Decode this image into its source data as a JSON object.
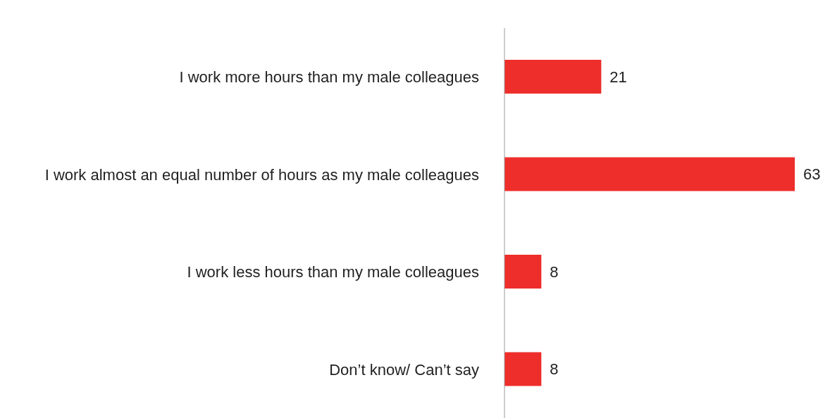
{
  "chart_data": {
    "type": "bar",
    "orientation": "horizontal",
    "categories": [
      "I work more hours than my male colleagues",
      "I work almost an equal number of hours as my male colleagues",
      "I work less hours than my male colleagues",
      "Don’t know/ Can’t say"
    ],
    "values": [
      21,
      63,
      8,
      8
    ],
    "color": "#ee2e2a",
    "data_labels": true
  }
}
